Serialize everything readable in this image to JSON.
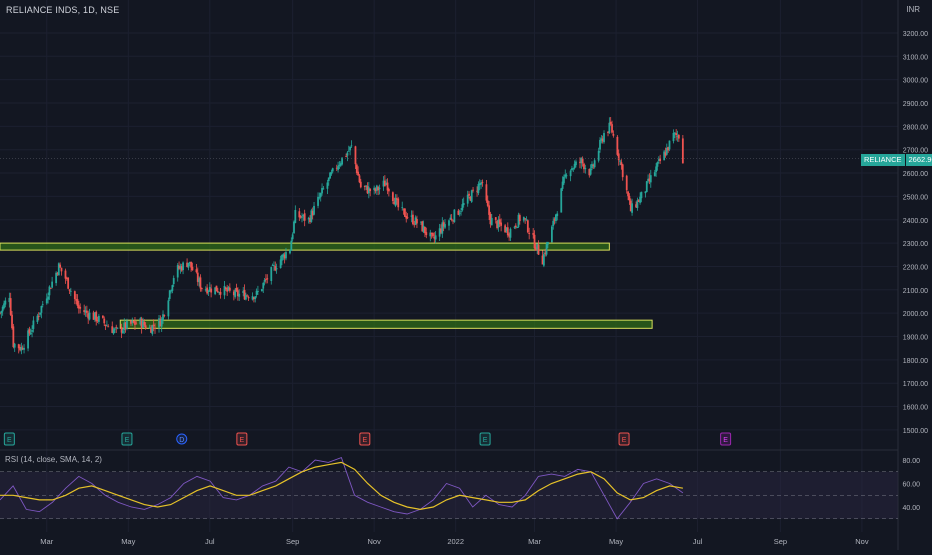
{
  "header": {
    "symbol_title": "RELIANCE INDS, 1D, NSE",
    "currency": "INR"
  },
  "last_price": {
    "symbol": "RELIANCE",
    "value": "2662.90"
  },
  "colors": {
    "background": "#131722",
    "up": "#26a69a",
    "down": "#ef5350",
    "zone_fill": "#2f6b18",
    "zone_border": "#d8e05a",
    "rsi_line": "#7e57c2",
    "rsi_sma": "#e6c229",
    "rsi_band": "#2a2640"
  },
  "chart_data": [
    {
      "type": "candlestick",
      "title": "RELIANCE INDS, 1D, NSE",
      "ylabel": "INR",
      "ylim": [
        1450,
        3300
      ],
      "y_ticks": [
        1500,
        1600,
        1700,
        1800,
        1900,
        2000,
        2100,
        2200,
        2300,
        2400,
        2500,
        2600,
        2700,
        2800,
        2900,
        3000,
        3100,
        3200
      ],
      "y_tick_labels": [
        "1500.00",
        "1600.00",
        "1700.00",
        "1800.00",
        "1900.00",
        "2000.00",
        "2100.00",
        "2200.00",
        "2300.00",
        "2400.00",
        "2500.00",
        "2600.00",
        "2700.00",
        "2800.00",
        "2900.00",
        "3000.00",
        "3100.00",
        "3200.00"
      ],
      "x_tick_labels": [
        "Mar",
        "May",
        "Jul",
        "Sep",
        "Nov",
        "2022",
        "Mar",
        "May",
        "Jul",
        "Sep",
        "Nov"
      ],
      "x_range": [
        "2021-01-25",
        "2022-11-28"
      ],
      "x_ticks": [
        "2021-03-01",
        "2021-05-01",
        "2021-07-01",
        "2021-09-01",
        "2021-11-01",
        "2022-01-01",
        "2022-03-01",
        "2022-05-01",
        "2022-07-01",
        "2022-09-01",
        "2022-11-01"
      ],
      "grid": true,
      "zones": [
        {
          "start": "2021-01-25",
          "end": "2022-04-26",
          "low": 2270,
          "high": 2300
        },
        {
          "start": "2021-04-25",
          "end": "2022-05-28",
          "low": 1935,
          "high": 1970
        }
      ],
      "path_points": [
        [
          "2021-01-25",
          2000
        ],
        [
          "2021-02-01",
          2080
        ],
        [
          "2021-02-04",
          1870
        ],
        [
          "2021-02-10",
          1850
        ],
        [
          "2021-02-20",
          1960
        ],
        [
          "2021-03-01",
          2080
        ],
        [
          "2021-03-10",
          2200
        ],
        [
          "2021-03-15",
          2150
        ],
        [
          "2021-03-25",
          2020
        ],
        [
          "2021-04-10",
          1970
        ],
        [
          "2021-04-22",
          1920
        ],
        [
          "2021-05-01",
          1950
        ],
        [
          "2021-05-10",
          1960
        ],
        [
          "2021-05-17",
          1935
        ],
        [
          "2021-05-26",
          1970
        ],
        [
          "2021-06-05",
          2180
        ],
        [
          "2021-06-15",
          2220
        ],
        [
          "2021-06-25",
          2110
        ],
        [
          "2021-07-10",
          2100
        ],
        [
          "2021-07-20",
          2080
        ],
        [
          "2021-08-05",
          2080
        ],
        [
          "2021-08-20",
          2210
        ],
        [
          "2021-08-30",
          2280
        ],
        [
          "2021-09-03",
          2420
        ],
        [
          "2021-09-13",
          2400
        ],
        [
          "2021-09-25",
          2540
        ],
        [
          "2021-10-05",
          2640
        ],
        [
          "2021-10-15",
          2710
        ],
        [
          "2021-10-22",
          2540
        ],
        [
          "2021-11-01",
          2520
        ],
        [
          "2021-11-10",
          2560
        ],
        [
          "2021-11-20",
          2440
        ],
        [
          "2021-12-05",
          2380
        ],
        [
          "2021-12-15",
          2310
        ],
        [
          "2021-12-22",
          2370
        ],
        [
          "2022-01-05",
          2450
        ],
        [
          "2022-01-20",
          2560
        ],
        [
          "2022-01-27",
          2400
        ],
        [
          "2022-02-10",
          2350
        ],
        [
          "2022-02-20",
          2420
        ],
        [
          "2022-03-01",
          2300
        ],
        [
          "2022-03-07",
          2230
        ],
        [
          "2022-03-15",
          2380
        ],
        [
          "2022-03-25",
          2610
        ],
        [
          "2022-04-05",
          2650
        ],
        [
          "2022-04-12",
          2600
        ],
        [
          "2022-04-22",
          2770
        ],
        [
          "2022-04-27",
          2800
        ],
        [
          "2022-05-05",
          2630
        ],
        [
          "2022-05-12",
          2440
        ],
        [
          "2022-05-20",
          2500
        ],
        [
          "2022-06-01",
          2630
        ],
        [
          "2022-06-08",
          2700
        ],
        [
          "2022-06-13",
          2760
        ],
        [
          "2022-06-18",
          2760
        ],
        [
          "2022-06-20",
          2663
        ]
      ],
      "last_price": 2662.9,
      "event_markers": [
        {
          "date": "2021-02-01",
          "label": "E",
          "kind": "earnings-past"
        },
        {
          "date": "2021-04-30",
          "label": "E",
          "kind": "earnings-past"
        },
        {
          "date": "2021-06-10",
          "label": "D",
          "kind": "dividend"
        },
        {
          "date": "2021-07-25",
          "label": "E",
          "kind": "earnings-miss"
        },
        {
          "date": "2021-10-25",
          "label": "E",
          "kind": "earnings-miss"
        },
        {
          "date": "2022-01-23",
          "label": "E",
          "kind": "earnings-past"
        },
        {
          "date": "2022-05-07",
          "label": "E",
          "kind": "earnings-miss"
        },
        {
          "date": "2022-07-22",
          "label": "E",
          "kind": "earnings-next"
        }
      ]
    },
    {
      "type": "line",
      "title": "RSI (14, close, SMA, 14, 2)",
      "ylim": [
        28,
        86
      ],
      "y_ticks": [
        40,
        60,
        80
      ],
      "y_tick_labels": [
        "40.00",
        "60.00",
        "80.00"
      ],
      "bands": [
        30,
        50,
        70
      ],
      "series": [
        {
          "name": "RSI",
          "values": [
            46,
            58,
            38,
            36,
            44,
            56,
            66,
            60,
            50,
            44,
            40,
            38,
            42,
            48,
            60,
            66,
            62,
            48,
            46,
            50,
            58,
            62,
            74,
            70,
            80,
            78,
            82,
            50,
            44,
            40,
            36,
            34,
            38,
            46,
            60,
            56,
            40,
            50,
            42,
            40,
            50,
            66,
            68,
            66,
            72,
            70,
            50,
            30,
            44,
            60,
            64,
            60,
            52
          ]
        },
        {
          "name": "SMA",
          "values": [
            50,
            50,
            48,
            46,
            46,
            50,
            56,
            58,
            54,
            50,
            46,
            42,
            40,
            42,
            48,
            54,
            58,
            54,
            50,
            50,
            54,
            58,
            64,
            70,
            74,
            76,
            78,
            72,
            60,
            50,
            44,
            40,
            38,
            40,
            46,
            50,
            48,
            46,
            44,
            44,
            46,
            54,
            60,
            64,
            68,
            70,
            64,
            52,
            46,
            48,
            54,
            58,
            56
          ]
        }
      ]
    }
  ]
}
